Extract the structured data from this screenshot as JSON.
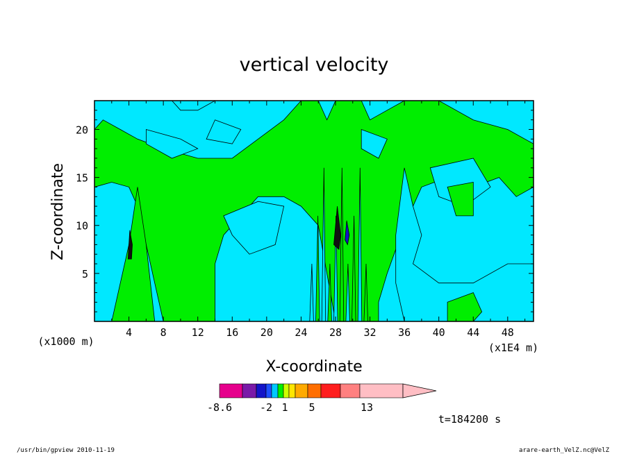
{
  "chart_data": {
    "type": "heatmap",
    "title": "vertical velocity",
    "xlabel": "X-coordinate",
    "ylabel": "Z-coordinate",
    "x_unit": "(x1E4 m)",
    "y_unit": "(x1000 m)",
    "xlim": [
      0,
      51
    ],
    "ylim": [
      0,
      23
    ],
    "x_ticks": [
      "4",
      "8",
      "12",
      "16",
      "20",
      "24",
      "28",
      "32",
      "36",
      "40",
      "44",
      "48"
    ],
    "y_ticks": [
      "5",
      "10",
      "15",
      "20"
    ],
    "colorbar": {
      "labels": [
        "-8.6",
        "-2",
        "1",
        "5",
        "13"
      ],
      "colors": [
        "#e6008c",
        "#7a1aa8",
        "#1414c8",
        "#1e50ff",
        "#00c8ff",
        "#00ee00",
        "#ccff00",
        "#ffe600",
        "#ffaa00",
        "#ff6e00",
        "#ff1e1e",
        "#ff8080",
        "#ffbec4"
      ]
    },
    "background_color": "#00e8ff",
    "positive_region_color": "#00ee00",
    "strong_core_color": "#111111",
    "time_label": "t=184200 s"
  },
  "footer": {
    "left": "/usr/bin/gpview   2010-11-19",
    "right": "arare-earth_VelZ.nc@VelZ"
  }
}
